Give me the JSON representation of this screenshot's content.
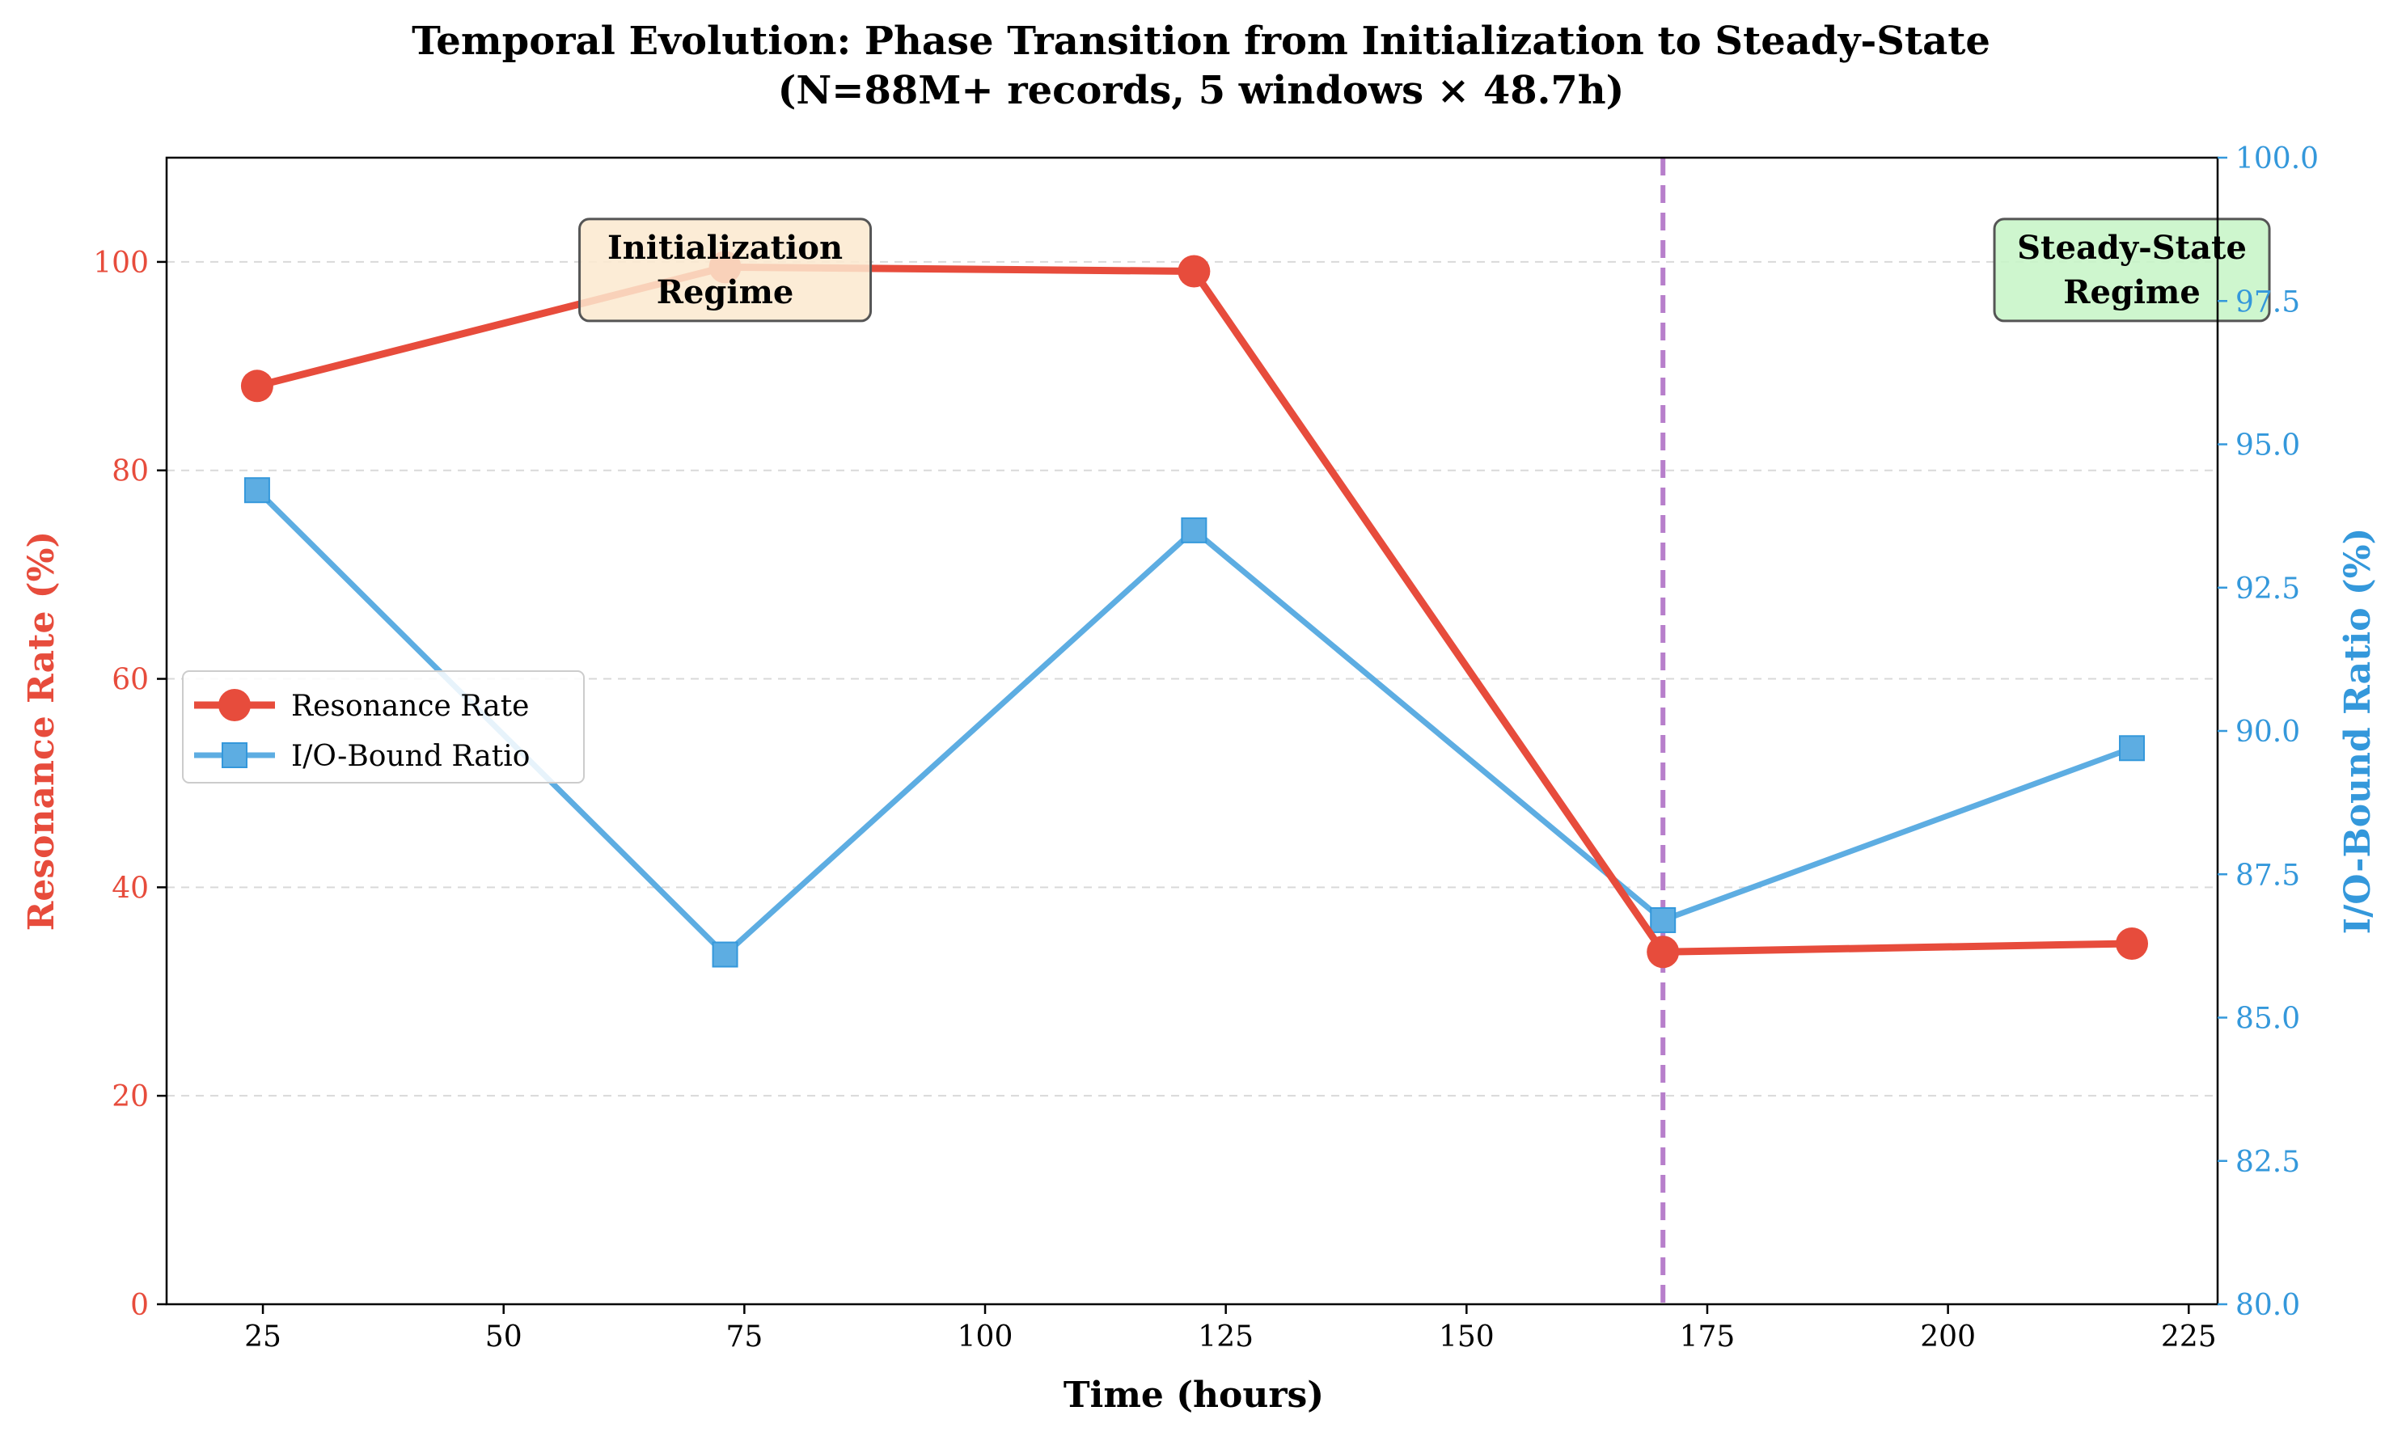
{
  "colors": {
    "resonance": "#e74c3c",
    "io": "#5dade2",
    "io_axis": "#3498db",
    "vline": "#b77fcb",
    "grid": "#d9d9d9",
    "init_box": "#fbe9cf",
    "steady_box": "#c6f5c6"
  },
  "chart_data": {
    "type": "line",
    "title_line1": "Temporal Evolution: Phase Transition from Initialization to Steady-State",
    "title_line2": "(N=88M+ records, 5 windows × 48.7h)",
    "xlabel": "Time (hours)",
    "ylabel_left": "Resonance Rate (%)",
    "ylabel_right": "I/O-Bound Ratio (%)",
    "xlim": [
      15,
      228
    ],
    "ylim_left": [
      0,
      110
    ],
    "ylim_right": [
      80,
      100
    ],
    "x_ticks": [
      "25",
      "50",
      "75",
      "100",
      "125",
      "150",
      "175",
      "200",
      "225"
    ],
    "x_tick_values": [
      25,
      50,
      75,
      100,
      125,
      150,
      175,
      200,
      225
    ],
    "y_left_ticks": [
      "0",
      "20",
      "40",
      "60",
      "80",
      "100"
    ],
    "y_left_tick_values": [
      0,
      20,
      40,
      60,
      80,
      100
    ],
    "y_right_ticks": [
      "80.0",
      "82.5",
      "85.0",
      "87.5",
      "90.0",
      "92.5",
      "95.0",
      "97.5",
      "100.0"
    ],
    "y_right_tick_values": [
      80,
      82.5,
      85,
      87.5,
      90,
      92.5,
      95,
      97.5,
      100
    ],
    "grid": "horizontal dashed",
    "legend_position": "center-left",
    "series": [
      {
        "name": "Resonance Rate",
        "axis": "left",
        "marker": "circle",
        "x": [
          24.4,
          73.0,
          121.7,
          170.4,
          219.1
        ],
        "values": [
          88.1,
          99.5,
          99.1,
          33.8,
          34.6
        ]
      },
      {
        "name": "I/O-Bound Ratio",
        "axis": "right",
        "marker": "square",
        "x": [
          24.4,
          73.0,
          121.7,
          170.4,
          219.1
        ],
        "values": [
          94.2,
          86.1,
          93.5,
          86.7,
          89.7
        ]
      }
    ],
    "vline_x": 170.4,
    "annotations": [
      {
        "lines": [
          "Initialization",
          "Regime"
        ],
        "x": 73.0,
        "y": 100
      },
      {
        "lines": [
          "Steady-State",
          "Regime"
        ],
        "x": 219.1,
        "y": 100
      }
    ]
  }
}
